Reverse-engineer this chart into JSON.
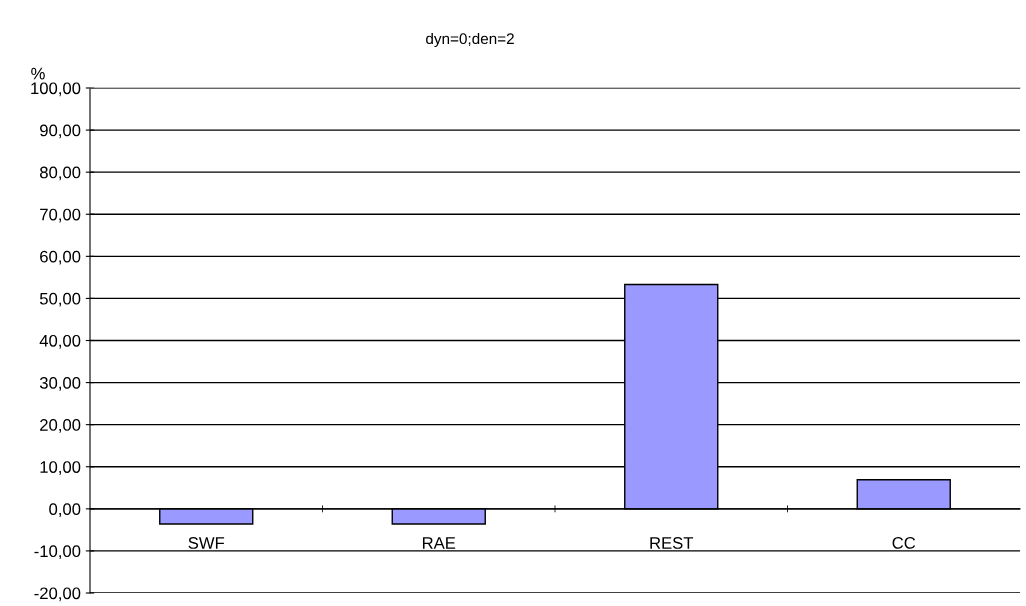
{
  "chart_data": {
    "type": "bar",
    "title": "dyn=0;den=2",
    "ylabel": "%",
    "categories": [
      "SWF",
      "RAE",
      "REST",
      "CC"
    ],
    "values": [
      -3.6,
      -3.6,
      53.3,
      6.9
    ],
    "color": "#9999ff",
    "ylim": [
      -20,
      100
    ],
    "yticks": [
      {
        "value": -20,
        "label": "-20,00"
      },
      {
        "value": -10,
        "label": "-10,00"
      },
      {
        "value": 0,
        "label": "0,00"
      },
      {
        "value": 10,
        "label": "10,00"
      },
      {
        "value": 20,
        "label": "20,00"
      },
      {
        "value": 30,
        "label": "30,00"
      },
      {
        "value": 40,
        "label": "40,00"
      },
      {
        "value": 50,
        "label": "50,00"
      },
      {
        "value": 60,
        "label": "60,00"
      },
      {
        "value": 70,
        "label": "70,00"
      },
      {
        "value": 80,
        "label": "80,00"
      },
      {
        "value": 90,
        "label": "90,00"
      },
      {
        "value": 100,
        "label": "100,00"
      }
    ],
    "grid": "y"
  }
}
